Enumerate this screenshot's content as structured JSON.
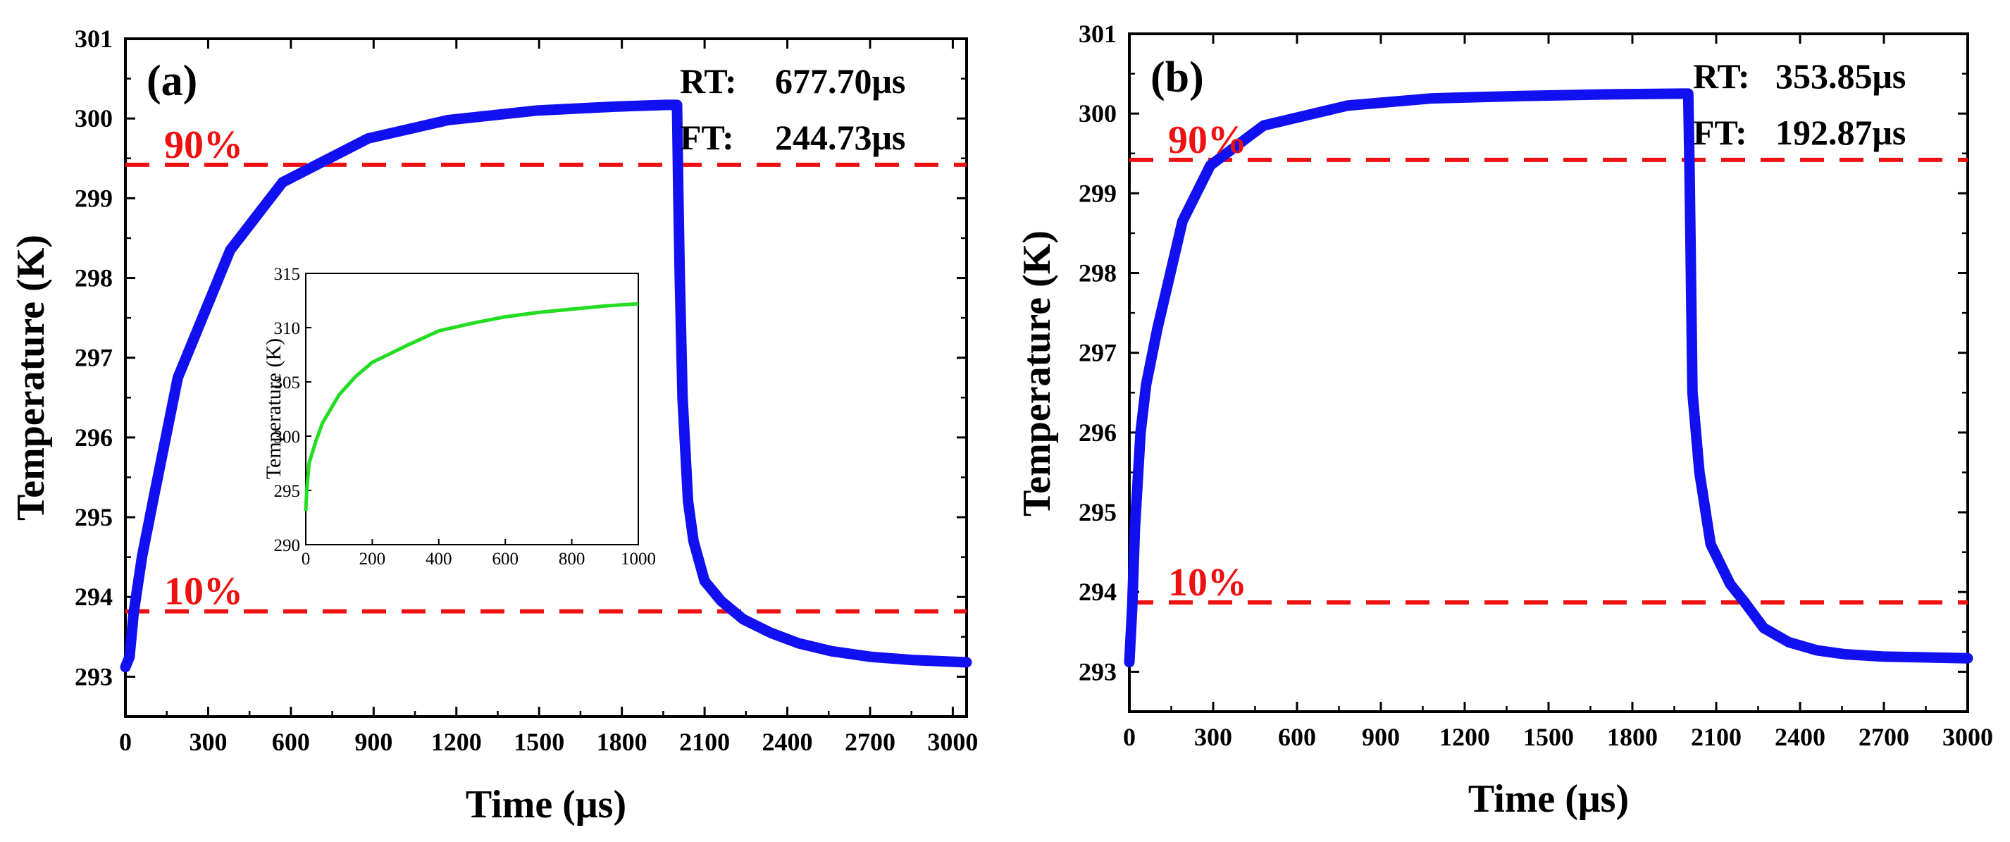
{
  "colors": {
    "main_series": "#1010f0",
    "inset_series": "#22dd22",
    "threshold": "#ee1111",
    "axis": "#000000"
  },
  "chart_data": [
    {
      "type": "line",
      "panel_label": "(a)",
      "xlabel": "Time (μs)",
      "ylabel": "Temperature (K)",
      "xlim": [
        0,
        3050
      ],
      "ylim": [
        292.5,
        301
      ],
      "xticks": [
        0,
        300,
        600,
        900,
        1200,
        1500,
        1800,
        2100,
        2400,
        2700,
        3000
      ],
      "yticks": [
        293,
        294,
        295,
        296,
        297,
        298,
        299,
        300,
        301
      ],
      "annotations": {
        "rt_label": "RT:",
        "rt_value": "677.70μs",
        "ft_label": "FT:",
        "ft_value": "244.73μs"
      },
      "thresholds": [
        {
          "label": "90%",
          "y": 299.42
        },
        {
          "label": "10%",
          "y": 293.82
        }
      ],
      "series": [
        {
          "x": [
            0,
            15,
            30,
            60,
            100,
            190,
            380,
            570,
            880,
            1170,
            1490,
            1780,
            1960,
            1985,
            1995,
            2000,
            2005,
            2010,
            2020,
            2040,
            2060,
            2100,
            2160,
            2240,
            2340,
            2440,
            2560,
            2700,
            2850,
            3050
          ],
          "y": [
            293.12,
            293.25,
            293.8,
            294.5,
            295.2,
            296.75,
            298.35,
            299.2,
            299.75,
            299.98,
            300.1,
            300.15,
            300.17,
            300.17,
            300.17,
            300.17,
            299.0,
            298.0,
            296.5,
            295.2,
            294.7,
            294.2,
            293.95,
            293.72,
            293.55,
            293.42,
            293.32,
            293.25,
            293.21,
            293.18
          ]
        }
      ],
      "inset": {
        "type": "line",
        "xlabel": "",
        "ylabel": "Temperature (K)",
        "xlim": [
          0,
          1000
        ],
        "ylim": [
          290,
          315
        ],
        "xticks": [
          0,
          200,
          400,
          600,
          800,
          1000
        ],
        "yticks": [
          290,
          295,
          300,
          305,
          310,
          315
        ],
        "series": [
          {
            "x": [
              0,
              3,
              10,
              30,
              50,
              100,
              150,
              200,
              300,
              400,
              500,
              600,
              700,
              800,
              900,
              1000
            ],
            "y": [
              293.1,
              295.0,
              297.5,
              299.5,
              301.2,
              303.8,
              305.5,
              306.8,
              308.3,
              309.7,
              310.4,
              311.0,
              311.4,
              311.7,
              312.0,
              312.2
            ]
          }
        ]
      }
    },
    {
      "type": "line",
      "panel_label": "(b)",
      "xlabel": "Time (μs)",
      "ylabel": "Temperature (K)",
      "xlim": [
        0,
        3000
      ],
      "ylim": [
        292.5,
        301
      ],
      "xticks": [
        0,
        300,
        600,
        900,
        1200,
        1500,
        1800,
        2100,
        2400,
        2700,
        3000
      ],
      "yticks": [
        293,
        294,
        295,
        296,
        297,
        298,
        299,
        300,
        301
      ],
      "annotations": {
        "rt_label": "RT:",
        "rt_value": "353.85μs",
        "ft_label": "FT:",
        "ft_value": "192.87μs"
      },
      "thresholds": [
        {
          "label": "90%",
          "y": 299.42
        },
        {
          "label": "10%",
          "y": 293.87
        }
      ],
      "series": [
        {
          "x": [
            0,
            10,
            20,
            40,
            60,
            100,
            190,
            290,
            480,
            780,
            1080,
            1400,
            1700,
            1980,
            1995,
            2000,
            2005,
            2015,
            2040,
            2080,
            2150,
            2200,
            2270,
            2360,
            2460,
            2560,
            2700,
            2850,
            3000
          ],
          "y": [
            293.12,
            293.8,
            294.8,
            296.0,
            296.6,
            297.3,
            298.65,
            299.35,
            299.85,
            300.1,
            300.19,
            300.22,
            300.24,
            300.25,
            300.25,
            300.25,
            299.2,
            296.5,
            295.5,
            294.6,
            294.1,
            293.88,
            293.55,
            293.37,
            293.27,
            293.22,
            293.19,
            293.18,
            293.17
          ]
        }
      ]
    }
  ]
}
